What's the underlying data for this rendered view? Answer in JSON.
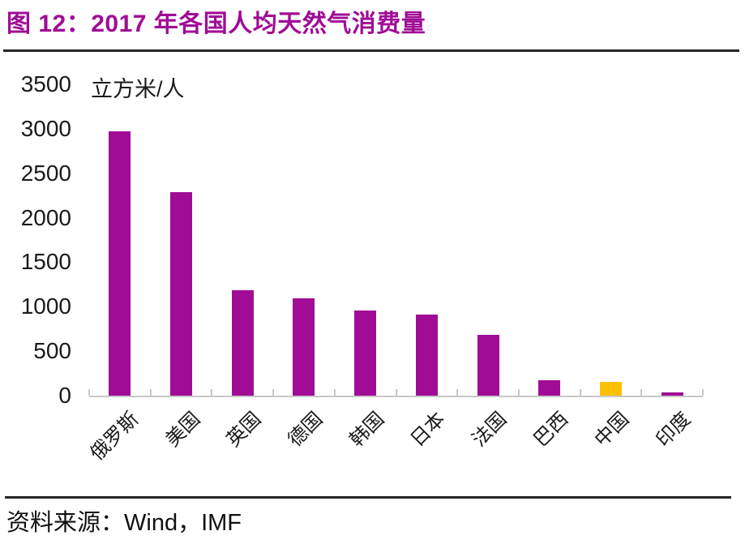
{
  "page": {
    "figure_title": "图 12：2017 年各国人均天然气消费量",
    "source": "资料来源：Wind，IMF"
  },
  "colors": {
    "title": "#A00C96",
    "bar": "#A00C96",
    "highlight_bar": "#FFC000",
    "divider": "#262626",
    "axis": "#C8C8C8",
    "text": "#1A1A1A"
  },
  "chart_data": {
    "type": "bar",
    "title": "2017 年各国人均天然气消费量",
    "unit_label": "立方米/人",
    "categories": [
      "俄罗斯",
      "美国",
      "英国",
      "德国",
      "韩国",
      "日本",
      "法国",
      "巴西",
      "中国",
      "印度"
    ],
    "values": [
      2970,
      2290,
      1185,
      1090,
      955,
      910,
      685,
      170,
      155,
      40
    ],
    "highlight_index": 8,
    "ylim": [
      0,
      3500
    ],
    "yticks": [
      0,
      500,
      1000,
      1500,
      2000,
      2500,
      3000,
      3500
    ],
    "grid": false,
    "legend": false,
    "xlabel_rotation_deg": -45
  }
}
